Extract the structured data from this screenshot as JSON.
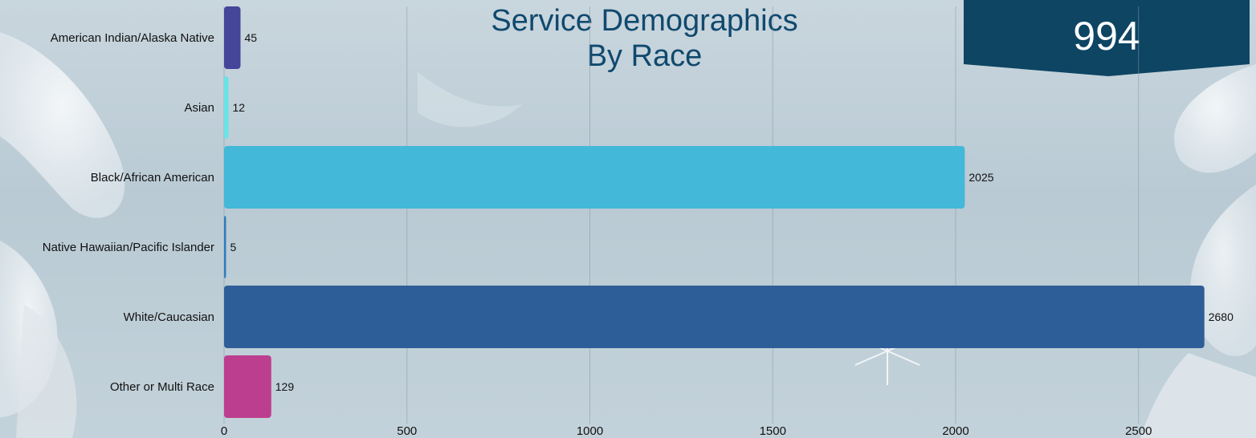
{
  "title": {
    "line1": "Service Demographics",
    "line2": "By Race"
  },
  "badge": {
    "value": "994",
    "color": "#0d4563"
  },
  "chart_data": {
    "type": "bar",
    "orientation": "horizontal",
    "title": "Service Demographics By Race",
    "categories": [
      "American Indian/Alaska Native",
      "Asian",
      "Black/African American",
      "Native Hawaiian/Pacific Islander",
      "White/Caucasian",
      "Other or Multi Race"
    ],
    "values": [
      45,
      12,
      2025,
      5,
      2680,
      129
    ],
    "colors": [
      "#45459a",
      "#67e4e8",
      "#43b8d9",
      "#2f7cbd",
      "#2e5e98",
      "#bc3f8f"
    ],
    "xlim": [
      0,
      2800
    ],
    "xticks": [
      0,
      500,
      1000,
      1500,
      2000,
      2500
    ],
    "grid": true,
    "data_labels": true,
    "legend": "none"
  }
}
